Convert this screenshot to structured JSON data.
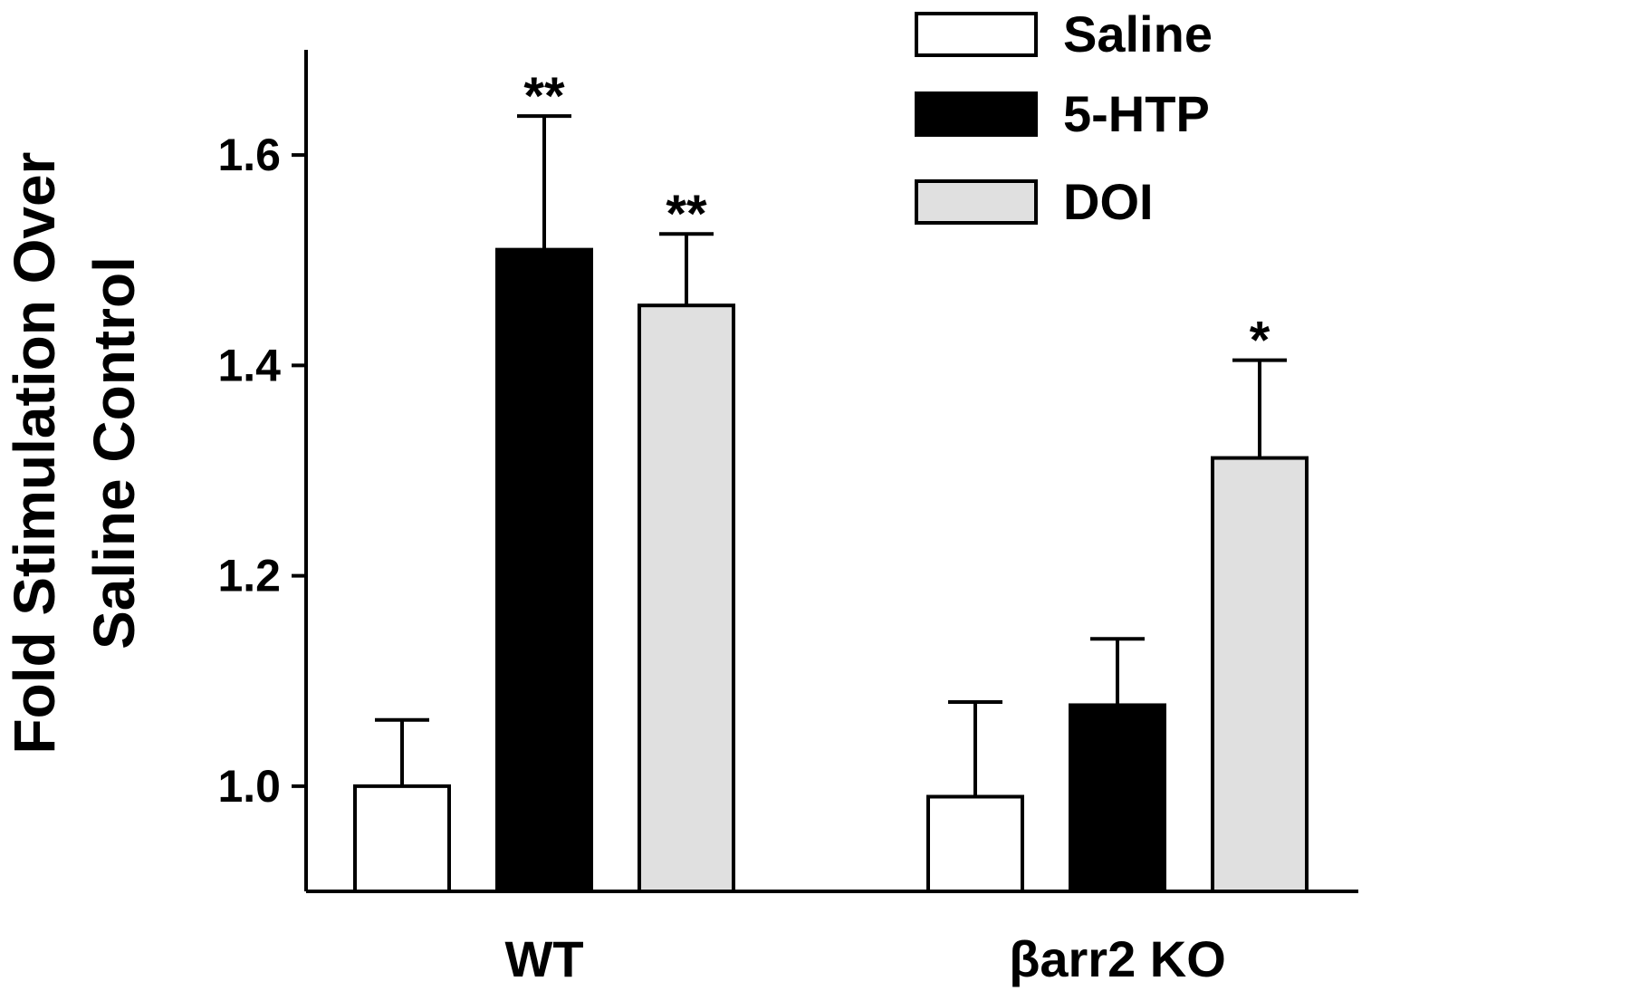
{
  "chart_data": {
    "type": "bar",
    "title": "",
    "ylabel_line1": "Fold Stimulation Over",
    "ylabel_line2": "Saline Control",
    "xlabel": "",
    "categories": [
      "WT",
      "βarr2 KO"
    ],
    "ylim": [
      0.9,
      1.7
    ],
    "yticks": [
      1.0,
      1.2,
      1.4,
      1.6
    ],
    "ytick_labels": [
      "1.0",
      "1.2",
      "1.4",
      "1.6"
    ],
    "grid": false,
    "legend_position": "top-right",
    "series": [
      {
        "name": "Saline",
        "color": "#ffffff",
        "values": [
          1.0,
          0.99
        ],
        "errors": [
          0.063,
          0.09
        ],
        "significance": [
          "",
          ""
        ]
      },
      {
        "name": "5-HTP",
        "color": "#000000",
        "values": [
          1.51,
          1.077
        ],
        "errors": [
          0.127,
          0.063
        ],
        "significance": [
          "**",
          ""
        ]
      },
      {
        "name": "DOI",
        "color": "#e0e0e0",
        "values": [
          1.457,
          1.312
        ],
        "errors": [
          0.068,
          0.093
        ],
        "significance": [
          "**",
          "*"
        ]
      }
    ]
  }
}
